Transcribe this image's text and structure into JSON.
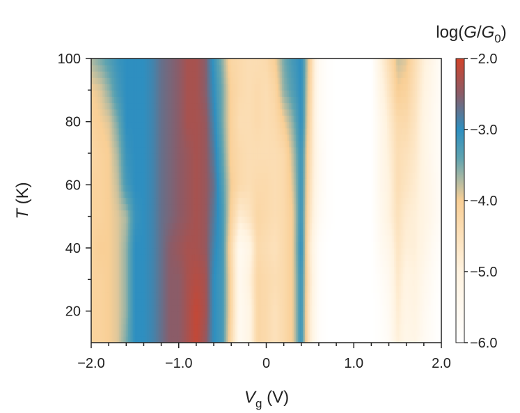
{
  "chart_data": {
    "type": "heatmap",
    "title": "",
    "xlabel": {
      "italic": "V",
      "subscript": "g",
      "unit": " (V)"
    },
    "ylabel": {
      "italic": "T",
      "unit": " (K)"
    },
    "xlim": [
      -2.0,
      2.0
    ],
    "ylim": [
      10,
      100
    ],
    "x_ticks": [
      {
        "value": -2.0,
        "label": "−2.0"
      },
      {
        "value": -1.0,
        "label": "−1.0"
      },
      {
        "value": 0,
        "label": "0"
      },
      {
        "value": 1.0,
        "label": "1.0"
      },
      {
        "value": 2.0,
        "label": "2.0"
      }
    ],
    "x_minor_ticks": [
      -1.8,
      -1.6,
      -1.4,
      -1.2,
      -0.8,
      -0.6,
      -0.4,
      -0.2,
      0.2,
      0.4,
      0.6,
      0.8,
      1.2,
      1.4,
      1.6,
      1.8
    ],
    "y_ticks": [
      {
        "value": 20,
        "label": "20"
      },
      {
        "value": 40,
        "label": "40"
      },
      {
        "value": 60,
        "label": "60"
      },
      {
        "value": 80,
        "label": "80"
      },
      {
        "value": 100,
        "label": "100"
      }
    ],
    "y_minor_ticks": [
      30,
      50,
      70,
      90
    ],
    "colorbar": {
      "title": {
        "prefix": "log(",
        "italic1": "G",
        "slash": "/",
        "italic2": "G",
        "subscript": "0",
        "suffix": ")"
      },
      "range": [
        -6.0,
        -2.0
      ],
      "ticks": [
        {
          "value": -2.0,
          "label": "−2.0"
        },
        {
          "value": -3.0,
          "label": "−3.0"
        },
        {
          "value": -4.0,
          "label": "−4.0"
        },
        {
          "value": -5.0,
          "label": "−5.0"
        },
        {
          "value": -6.0,
          "label": "−6.0"
        }
      ],
      "stops": [
        {
          "value": -6.0,
          "color": "#ffffff"
        },
        {
          "value": -5.0,
          "color": "#fff3e0"
        },
        {
          "value": -4.0,
          "color": "#f9cf96"
        },
        {
          "value": -3.4,
          "color": "#5fa3b0"
        },
        {
          "value": -3.0,
          "color": "#2e8fc0"
        },
        {
          "value": -2.5,
          "color": "#8b5c68"
        },
        {
          "value": -2.0,
          "color": "#d2432a"
        }
      ]
    },
    "profile_vg": [
      -2.0,
      -1.9,
      -1.8,
      -1.7,
      -1.6,
      -1.5,
      -1.4,
      -1.3,
      -1.2,
      -1.1,
      -1.0,
      -0.9,
      -0.8,
      -0.7,
      -0.6,
      -0.5,
      -0.4,
      -0.3,
      -0.2,
      -0.1,
      0.0,
      0.1,
      0.2,
      0.3,
      0.4,
      0.5,
      0.6,
      0.7,
      0.8,
      0.9,
      1.0,
      1.1,
      1.2,
      1.3,
      1.4,
      1.5,
      1.6,
      1.7,
      1.8,
      1.9,
      2.0
    ],
    "profiles": [
      {
        "T": 10,
        "values": [
          -4.1,
          -4.1,
          -4.0,
          -3.9,
          -3.5,
          -3.0,
          -3.0,
          -2.9,
          -2.7,
          -2.5,
          -2.5,
          -2.3,
          -2.1,
          -2.4,
          -3.0,
          -3.2,
          -4.3,
          -5.5,
          -5.2,
          -4.2,
          -4.3,
          -4.5,
          -4.3,
          -4.0,
          -3.1,
          -4.8,
          -5.8,
          -6.0,
          -6.0,
          -6.0,
          -6.0,
          -6.0,
          -6.0,
          -5.9,
          -5.7,
          -4.9,
          -5.3,
          -5.2,
          -5.6,
          -5.8,
          -6.0
        ]
      },
      {
        "T": 20,
        "values": [
          -4.1,
          -4.1,
          -4.0,
          -3.9,
          -3.6,
          -3.0,
          -3.0,
          -2.9,
          -2.7,
          -2.5,
          -2.5,
          -2.3,
          -2.1,
          -2.3,
          -3.0,
          -3.2,
          -4.2,
          -5.5,
          -5.2,
          -4.2,
          -4.3,
          -4.5,
          -4.3,
          -4.0,
          -3.1,
          -4.8,
          -5.8,
          -6.0,
          -6.0,
          -6.0,
          -6.0,
          -6.0,
          -6.0,
          -5.9,
          -5.6,
          -4.8,
          -5.2,
          -5.1,
          -5.5,
          -5.8,
          -6.0
        ]
      },
      {
        "T": 30,
        "values": [
          -4.1,
          -4.1,
          -4.0,
          -3.9,
          -3.6,
          -3.0,
          -3.0,
          -2.9,
          -2.7,
          -2.5,
          -2.5,
          -2.3,
          -2.2,
          -2.3,
          -3.0,
          -3.2,
          -4.2,
          -5.5,
          -5.0,
          -4.2,
          -4.3,
          -4.4,
          -4.3,
          -4.0,
          -3.1,
          -4.7,
          -5.8,
          -6.0,
          -6.0,
          -6.0,
          -6.0,
          -6.0,
          -6.0,
          -5.8,
          -5.5,
          -4.7,
          -5.1,
          -5.0,
          -5.4,
          -5.7,
          -6.0
        ]
      },
      {
        "T": 40,
        "values": [
          -4.1,
          -4.0,
          -4.0,
          -3.9,
          -3.6,
          -3.0,
          -3.0,
          -2.9,
          -2.7,
          -2.5,
          -2.4,
          -2.3,
          -2.3,
          -2.4,
          -2.9,
          -3.2,
          -4.3,
          -5.5,
          -5.2,
          -4.3,
          -4.4,
          -4.5,
          -4.3,
          -4.0,
          -3.0,
          -4.8,
          -5.8,
          -6.0,
          -6.0,
          -6.0,
          -6.0,
          -6.0,
          -6.0,
          -5.6,
          -5.3,
          -4.6,
          -4.9,
          -4.9,
          -5.2,
          -5.6,
          -5.9
        ]
      },
      {
        "T": 50,
        "values": [
          -4.1,
          -4.1,
          -4.0,
          -3.9,
          -3.7,
          -3.1,
          -3.0,
          -2.9,
          -2.7,
          -2.6,
          -2.5,
          -2.4,
          -2.3,
          -2.4,
          -2.8,
          -3.2,
          -4.1,
          -4.8,
          -4.6,
          -4.2,
          -4.3,
          -4.4,
          -4.3,
          -4.0,
          -3.1,
          -4.6,
          -5.6,
          -5.9,
          -6.0,
          -6.0,
          -6.0,
          -6.0,
          -6.0,
          -5.5,
          -5.0,
          -4.5,
          -4.8,
          -4.9,
          -5.1,
          -5.4,
          -5.8
        ]
      },
      {
        "T": 60,
        "values": [
          -4.1,
          -4.1,
          -4.0,
          -3.8,
          -3.2,
          -3.0,
          -3.0,
          -2.9,
          -2.7,
          -2.6,
          -2.5,
          -2.4,
          -2.3,
          -2.4,
          -2.7,
          -3.3,
          -4.0,
          -4.3,
          -4.4,
          -4.3,
          -4.3,
          -4.4,
          -4.3,
          -3.9,
          -3.1,
          -4.5,
          -5.5,
          -5.9,
          -6.0,
          -6.0,
          -6.0,
          -6.0,
          -6.0,
          -5.4,
          -5.0,
          -4.4,
          -4.6,
          -4.8,
          -5.1,
          -5.4,
          -5.8
        ]
      },
      {
        "T": 70,
        "values": [
          -4.2,
          -4.1,
          -4.0,
          -3.7,
          -3.1,
          -3.0,
          -3.0,
          -2.9,
          -2.7,
          -2.6,
          -2.5,
          -2.4,
          -2.3,
          -2.4,
          -2.8,
          -3.4,
          -4.1,
          -4.3,
          -4.4,
          -4.4,
          -4.4,
          -4.4,
          -4.3,
          -3.8,
          -3.1,
          -4.4,
          -5.5,
          -5.9,
          -6.0,
          -6.0,
          -6.0,
          -6.0,
          -6.0,
          -5.4,
          -4.9,
          -4.4,
          -4.5,
          -4.7,
          -5.1,
          -5.5,
          -5.8
        ]
      },
      {
        "T": 80,
        "values": [
          -4.1,
          -4.0,
          -3.9,
          -3.5,
          -3.0,
          -3.0,
          -3.0,
          -2.9,
          -2.7,
          -2.6,
          -2.5,
          -2.3,
          -2.3,
          -2.4,
          -2.9,
          -3.5,
          -4.1,
          -4.4,
          -4.4,
          -4.3,
          -4.4,
          -4.3,
          -4.0,
          -3.6,
          -3.0,
          -4.3,
          -5.6,
          -5.9,
          -6.0,
          -6.0,
          -6.0,
          -6.0,
          -6.0,
          -5.4,
          -4.8,
          -4.3,
          -4.3,
          -4.6,
          -5.1,
          -5.5,
          -5.8
        ]
      },
      {
        "T": 90,
        "values": [
          -4.0,
          -3.9,
          -3.6,
          -3.2,
          -3.0,
          -3.0,
          -3.0,
          -2.9,
          -2.7,
          -2.6,
          -2.5,
          -2.3,
          -2.3,
          -2.5,
          -3.0,
          -3.5,
          -4.1,
          -4.3,
          -4.4,
          -4.3,
          -4.4,
          -4.2,
          -3.6,
          -3.3,
          -3.0,
          -4.2,
          -5.6,
          -5.9,
          -6.0,
          -6.0,
          -6.0,
          -6.0,
          -6.0,
          -5.2,
          -4.6,
          -4.0,
          -4.1,
          -4.5,
          -5.0,
          -5.4,
          -5.8
        ]
      },
      {
        "T": 100,
        "values": [
          -3.7,
          -3.5,
          -3.3,
          -3.1,
          -3.0,
          -3.0,
          -3.0,
          -2.9,
          -2.7,
          -2.6,
          -2.5,
          -2.3,
          -2.3,
          -2.5,
          -3.1,
          -3.6,
          -4.2,
          -4.3,
          -4.4,
          -4.4,
          -4.3,
          -4.0,
          -3.5,
          -3.2,
          -3.0,
          -4.1,
          -5.6,
          -5.9,
          -6.0,
          -6.0,
          -6.0,
          -6.0,
          -6.0,
          -5.0,
          -4.4,
          -3.8,
          -3.9,
          -4.4,
          -4.9,
          -5.3,
          -5.8
        ]
      }
    ]
  }
}
